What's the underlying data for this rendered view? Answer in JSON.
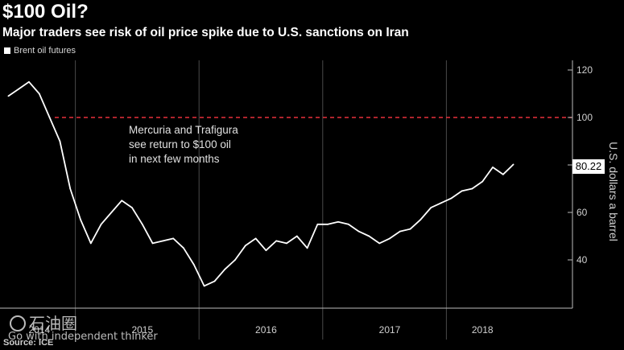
{
  "title": "$100 Oil?",
  "subtitle": "Major traders see risk of oil price spike due to U.S. sanctions on Iran",
  "source": "Source: ICE",
  "watermark": {
    "name": "石油圈",
    "tagline": "Go with independent thinker"
  },
  "colors": {
    "background": "#000000",
    "series": "#ffffff",
    "reference_line": "#e8313a",
    "grid": "#555555"
  },
  "chart_data": {
    "type": "line",
    "title": "$100 Oil?",
    "subtitle": "Major traders see risk of oil price spike due to U.S. sanctions on Iran",
    "ylabel": "U.S. dollars a barrel",
    "xlabel": "",
    "ylim": [
      20,
      120
    ],
    "y_ticks": [
      40,
      60,
      80,
      100,
      120
    ],
    "x_range": [
      "2014-06-01",
      "2018-07-31"
    ],
    "x_ticks": [
      "2014",
      "2015",
      "2016",
      "2017",
      "2018"
    ],
    "grid": "vertical",
    "axis_side": "right",
    "legend_position": "top-left",
    "series": [
      {
        "name": "Brent oil futures",
        "x": [
          "2014-06",
          "2014-07",
          "2014-08",
          "2014-09",
          "2014-10",
          "2014-11",
          "2014-12",
          "2015-01",
          "2015-02",
          "2015-03",
          "2015-04",
          "2015-05",
          "2015-06",
          "2015-07",
          "2015-08",
          "2015-09",
          "2015-10",
          "2015-11",
          "2015-12",
          "2016-01",
          "2016-02",
          "2016-03",
          "2016-04",
          "2016-05",
          "2016-06",
          "2016-07",
          "2016-08",
          "2016-09",
          "2016-10",
          "2016-11",
          "2016-12",
          "2017-01",
          "2017-02",
          "2017-03",
          "2017-04",
          "2017-05",
          "2017-06",
          "2017-07",
          "2017-08",
          "2017-09",
          "2017-10",
          "2017-11",
          "2017-12",
          "2018-01",
          "2018-02",
          "2018-03",
          "2018-04",
          "2018-05",
          "2018-06",
          "2018-07"
        ],
        "values": [
          109,
          112,
          115,
          110,
          100,
          90,
          70,
          57,
          47,
          55,
          60,
          65,
          62,
          55,
          47,
          48,
          49,
          45,
          38,
          29,
          31,
          36,
          40,
          46,
          49,
          44,
          48,
          47,
          50,
          45,
          55,
          55,
          56,
          55,
          52,
          50,
          47,
          49,
          52,
          53,
          57,
          62,
          64,
          66,
          69,
          70,
          73,
          79,
          76,
          80.22
        ]
      }
    ],
    "last_value_label": "80.22",
    "reference_lines": [
      {
        "y": 100
      }
    ],
    "annotations": [
      "Mercuria and Trafigura",
      "see return to $100 oil",
      "in next few months"
    ]
  }
}
